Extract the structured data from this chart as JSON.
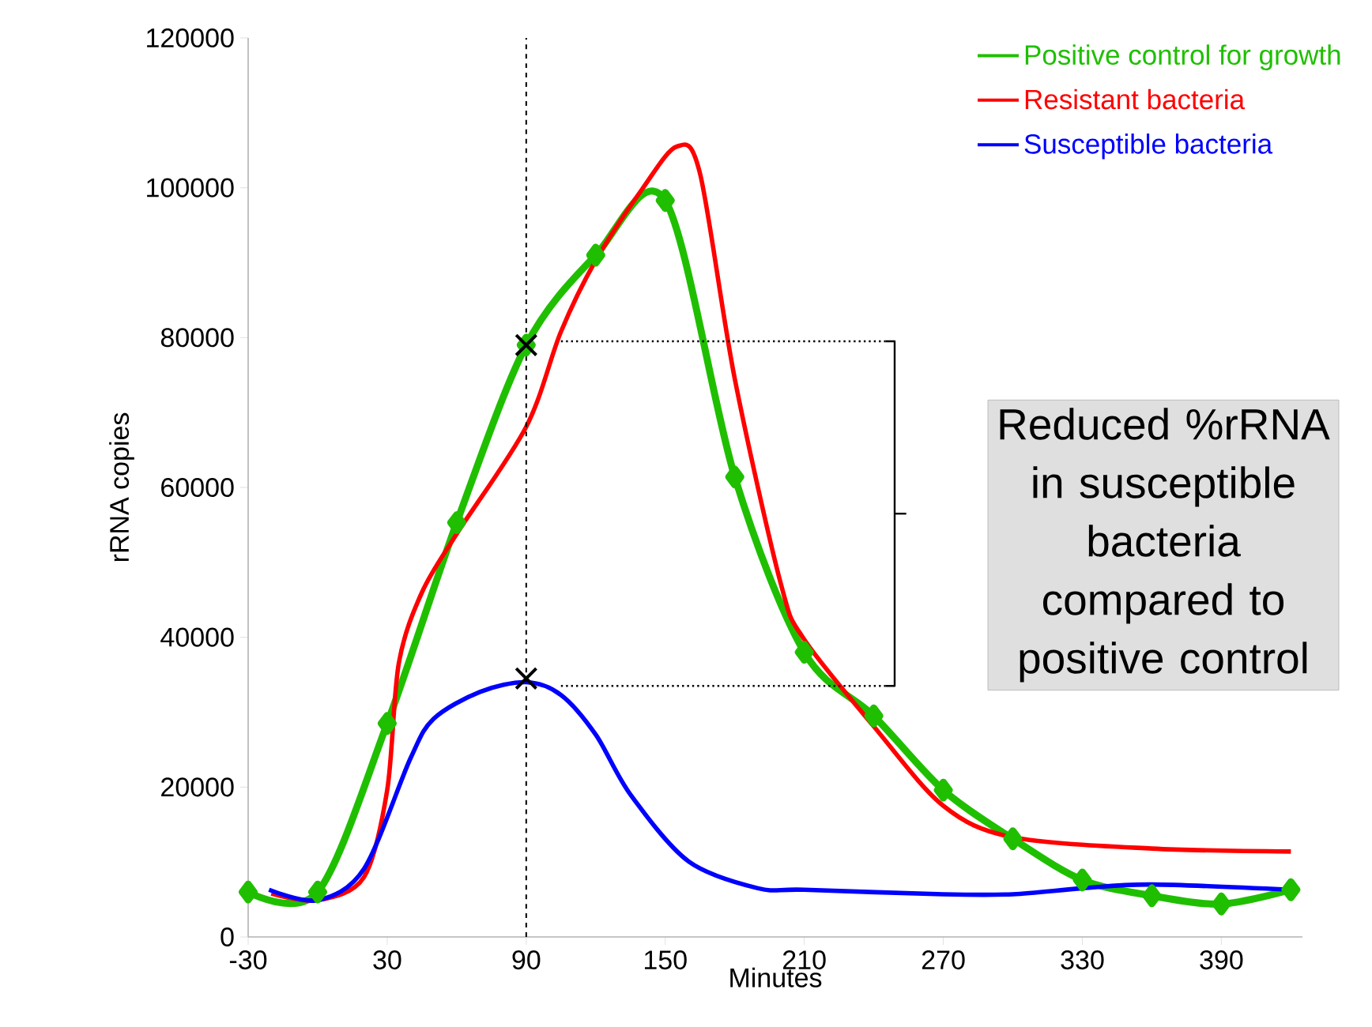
{
  "chart_data": {
    "type": "line",
    "xlabel": "Minutes",
    "ylabel": "rRNA copies",
    "xlim": [
      -30,
      425
    ],
    "xticks": [
      -30,
      30,
      90,
      150,
      210,
      270,
      330,
      390
    ],
    "ylim": [
      0,
      120000
    ],
    "yticks": [
      0,
      20000,
      40000,
      60000,
      80000,
      100000,
      120000
    ],
    "legend": "top right",
    "series": [
      {
        "name": "Positive control for growth",
        "color": "#1fbf00",
        "marker": "diamond",
        "x": [
          -30,
          0,
          30,
          60,
          90,
          120,
          150,
          180,
          210,
          240,
          270,
          300,
          330,
          360,
          390,
          420
        ],
        "values": [
          6000,
          6000,
          28500,
          55300,
          79000,
          91000,
          98300,
          61400,
          38000,
          29500,
          19600,
          13100,
          7600,
          5500,
          4400,
          6300
        ]
      },
      {
        "name": "Resistant bacteria",
        "color": "#ff0000",
        "marker": "none",
        "x": [
          -20,
          0,
          20,
          30,
          35,
          45,
          60,
          90,
          105,
          120,
          140,
          155,
          165,
          180,
          200,
          210,
          240,
          270,
          300,
          360,
          420
        ],
        "values": [
          5800,
          4900,
          8000,
          19600,
          36500,
          46000,
          53800,
          68100,
          80800,
          90300,
          99800,
          105500,
          101900,
          74500,
          47000,
          39700,
          28100,
          17500,
          13300,
          11800,
          11400
        ]
      },
      {
        "name": "Susceptible bacteria",
        "color": "#0000ff",
        "marker": "none",
        "x": [
          -21,
          0,
          20,
          40,
          50,
          70,
          90,
          105,
          120,
          135,
          160,
          190,
          210,
          270,
          300,
          330,
          360,
          420
        ],
        "values": [
          6300,
          4900,
          9100,
          23800,
          29100,
          32700,
          34000,
          32300,
          27000,
          19000,
          10100,
          6500,
          6300,
          5700,
          5700,
          6500,
          7000,
          6300
        ]
      },
      {
        "type": "scatter",
        "color": "#000000",
        "marker": "cross",
        "x": [
          90,
          90
        ],
        "values": [
          79000,
          34500
        ]
      },
      {
        "color": "#000000",
        "marker": "none",
        "line_style": "dotted",
        "x": [
          105,
          245
        ],
        "values": [
          79500,
          79500
        ]
      },
      {
        "color": "#000000",
        "marker": "none",
        "line_style": "dotted",
        "x": [
          105,
          245
        ],
        "values": [
          33500,
          33500
        ]
      },
      {
        "color": "#000000",
        "marker": "none",
        "x": [
          245,
          249,
          249,
          245
        ],
        "values": [
          79500,
          79500,
          33500,
          33500
        ]
      },
      {
        "color": "#000000",
        "marker": "none",
        "x": [
          249,
          254
        ],
        "values": [
          56500,
          56500
        ]
      }
    ],
    "ref_lines": [
      {
        "axis": "x",
        "value": 90,
        "color": "#000000",
        "line_style": "dashed"
      }
    ],
    "annotations": [
      "Reduced %rRNA in susceptible bacteria compared to positive control"
    ]
  }
}
